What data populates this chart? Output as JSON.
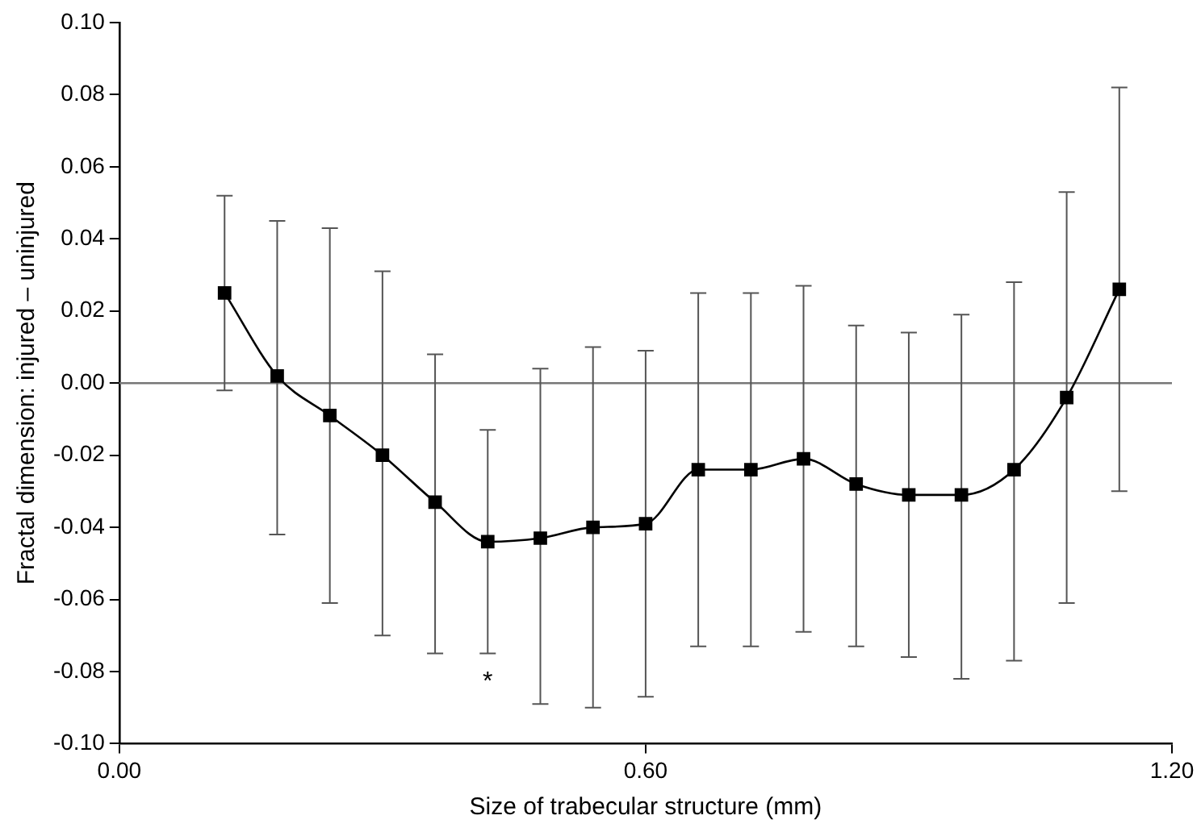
{
  "chart_data": {
    "type": "line",
    "xlabel": "Size of trabecular structure (mm)",
    "ylabel": "Fractal dimension: injured – uninjured",
    "x": [
      0.12,
      0.18,
      0.24,
      0.3,
      0.36,
      0.42,
      0.48,
      0.54,
      0.6,
      0.66,
      0.72,
      0.78,
      0.84,
      0.9,
      0.96,
      1.02,
      1.08,
      1.14
    ],
    "series": [
      {
        "color": "#000000",
        "values": [
          0.025,
          0.002,
          -0.009,
          -0.02,
          -0.033,
          -0.044,
          -0.043,
          -0.04,
          -0.039,
          -0.024,
          -0.024,
          -0.021,
          -0.028,
          -0.031,
          -0.031,
          -0.024,
          -0.004,
          0.026
        ],
        "errors": [
          [
            -0.002,
            0.052
          ],
          [
            -0.042,
            0.045
          ],
          [
            -0.061,
            0.043
          ],
          [
            -0.07,
            0.031
          ],
          [
            -0.075,
            0.008
          ],
          [
            -0.075,
            -0.013
          ],
          [
            -0.089,
            0.004
          ],
          [
            -0.09,
            0.01
          ],
          [
            -0.087,
            0.009
          ],
          [
            -0.073,
            0.025
          ],
          [
            -0.073,
            0.025
          ],
          [
            -0.069,
            0.027
          ],
          [
            -0.073,
            0.016
          ],
          [
            -0.076,
            0.014
          ],
          [
            -0.082,
            0.019
          ],
          [
            -0.077,
            0.028
          ],
          [
            -0.061,
            0.053
          ],
          [
            -0.03,
            0.082
          ]
        ]
      }
    ],
    "marker": "square",
    "line_style": "solid",
    "xlim": [
      0,
      1.2
    ],
    "xticks": [
      {
        "value": 0,
        "label": "0.00"
      },
      {
        "value": 0.6,
        "label": "0.60"
      },
      {
        "value": 1.2,
        "label": "1.20"
      }
    ],
    "ylim": [
      -0.1,
      0.1
    ],
    "yticks": [
      {
        "value": -0.1,
        "label": "-0.10"
      },
      {
        "value": -0.08,
        "label": "-0.08"
      },
      {
        "value": -0.06,
        "label": "-0.06"
      },
      {
        "value": -0.04,
        "label": "-0.04"
      },
      {
        "value": -0.02,
        "label": "-0.02"
      },
      {
        "value": 0,
        "label": "0.00"
      },
      {
        "value": 0.02,
        "label": "0.02"
      },
      {
        "value": 0.04,
        "label": "0.04"
      },
      {
        "value": 0.06,
        "label": "0.06"
      },
      {
        "value": 0.08,
        "label": "0.08"
      },
      {
        "value": 0.1,
        "label": "0.10"
      }
    ],
    "ref_lines": [
      {
        "axis": "y",
        "value": 0,
        "color": "#777777"
      }
    ],
    "annotations": [
      "*"
    ]
  }
}
